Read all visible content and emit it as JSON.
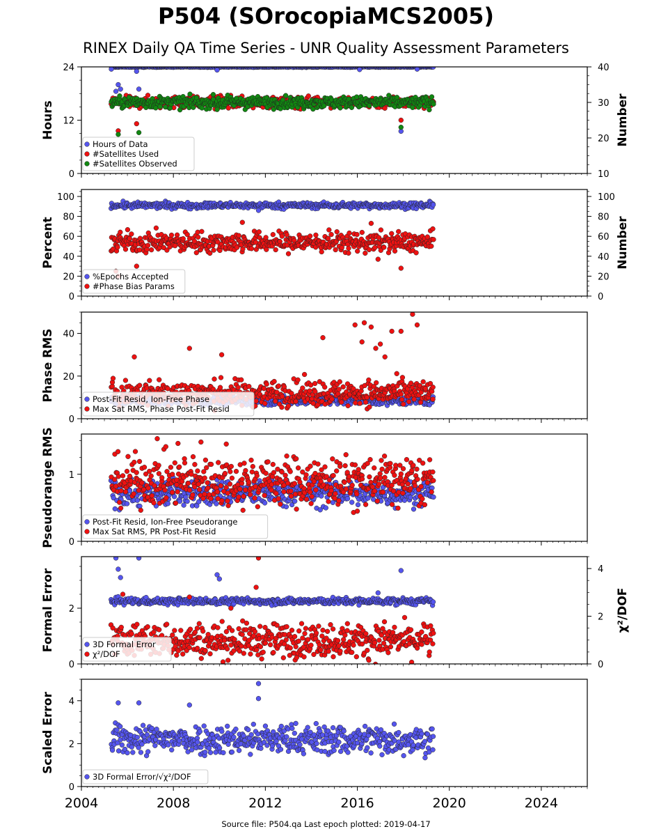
{
  "title": "P504 (SOrocopiaMCS2005)",
  "subtitle": "RINEX Daily QA Time Series - UNR Quality Assessment Parameters",
  "footer": "Source file: P504.qa Last epoch plotted: 2019-04-17",
  "colors": {
    "blue": "#5555ee",
    "red": "#ee1111",
    "green": "#118811",
    "edge": "#222222"
  },
  "chart_data": [
    {
      "type": "scatter",
      "panel": "hours",
      "xlim": [
        2004,
        2026
      ],
      "x_ticks": [
        "2004",
        "2008",
        "2012",
        "2016",
        "2020",
        "2024"
      ],
      "x_span": [
        2005.3,
        2019.3
      ],
      "ylabel": "Hours",
      "ylim": [
        0,
        24
      ],
      "yticks": [
        0,
        12,
        24
      ],
      "ylabel_right": "Number",
      "ylim_right": [
        10,
        40
      ],
      "yticks_right": [
        10,
        20,
        30,
        40
      ],
      "legend_position": "lower-left",
      "series": [
        {
          "name": "Hours of Data",
          "color": "blue",
          "axis": "left",
          "typical": 24.0,
          "spread": 0.05,
          "outliers": [
            [
              2005.3,
              23.5
            ],
            [
              2005.5,
              18.5
            ],
            [
              2005.6,
              20.0
            ],
            [
              2005.7,
              19.0
            ],
            [
              2006.4,
              23.0
            ],
            [
              2006.5,
              19.0
            ],
            [
              2009.9,
              23.3
            ],
            [
              2016.1,
              23.4
            ],
            [
              2017.9,
              9.5
            ],
            [
              2018.6,
              23.5
            ]
          ]
        },
        {
          "name": "#Satellites Used",
          "color": "red",
          "axis": "right",
          "typical": 30.0,
          "spread": 0.8,
          "outliers": [
            [
              2005.6,
              22.0
            ],
            [
              2006.4,
              24.0
            ],
            [
              2008.7,
              31.0
            ],
            [
              2017.9,
              25.0
            ]
          ]
        },
        {
          "name": "#Satellites Observed",
          "color": "green",
          "axis": "right",
          "typical": 30.0,
          "spread": 0.8,
          "outliers": [
            [
              2005.6,
              21.0
            ],
            [
              2006.5,
              21.5
            ],
            [
              2009.9,
              28.0
            ],
            [
              2017.9,
              23.0
            ]
          ]
        }
      ]
    },
    {
      "type": "scatter",
      "panel": "percent",
      "xlim": [
        2004,
        2026
      ],
      "ylabel": "Percent",
      "ylim": [
        0,
        107
      ],
      "yticks": [
        0,
        20,
        40,
        60,
        80,
        100
      ],
      "ylabel_right": "Number",
      "ylim_right": [
        0,
        107
      ],
      "yticks_right": [
        0,
        20,
        40,
        60,
        80,
        100
      ],
      "legend_position": "lower-left",
      "series": [
        {
          "name": "%Epochs Accepted",
          "color": "blue",
          "axis": "left",
          "typical": 91,
          "spread": 1.5,
          "outliers": [
            [
              2011.7,
              86
            ]
          ]
        },
        {
          "name": "#Phase Bias Params",
          "color": "red",
          "axis": "right",
          "typical": 54,
          "spread": 5,
          "outliers": [
            [
              2005.5,
              25
            ],
            [
              2005.6,
              20
            ],
            [
              2006.4,
              30
            ],
            [
              2011.0,
              74
            ],
            [
              2016.6,
              73
            ],
            [
              2016.9,
              37
            ],
            [
              2017.9,
              28
            ]
          ]
        }
      ]
    },
    {
      "type": "scatter",
      "panel": "phase",
      "xlim": [
        2004,
        2026
      ],
      "ylabel": "Phase RMS",
      "ylim": [
        0,
        50
      ],
      "yticks": [
        0,
        20,
        40
      ],
      "legend_position": "lower-left",
      "series": [
        {
          "name": "Post-Fit Resid, Ion-Free Phase",
          "color": "blue",
          "axis": "left",
          "typical": 8.5,
          "spread": 1.0,
          "outliers": []
        },
        {
          "name": "Max Sat RMS, Phase Post-Fit Resid",
          "color": "red",
          "axis": "left",
          "typical": 12,
          "spread": 3,
          "outliers": [
            [
              2006.3,
              29
            ],
            [
              2008.7,
              33
            ],
            [
              2010.1,
              30
            ],
            [
              2014.5,
              38
            ],
            [
              2015.9,
              44
            ],
            [
              2016.2,
              36
            ],
            [
              2016.3,
              45
            ],
            [
              2016.6,
              43
            ],
            [
              2016.8,
              33
            ],
            [
              2017.0,
              35
            ],
            [
              2017.2,
              29
            ],
            [
              2017.5,
              41
            ],
            [
              2017.9,
              41
            ],
            [
              2018.4,
              49
            ],
            [
              2018.6,
              44
            ]
          ]
        }
      ]
    },
    {
      "type": "scatter",
      "panel": "pseudorange",
      "xlim": [
        2004,
        2026
      ],
      "ylabel": "Pseudorange RMS",
      "ylim": [
        0,
        1.6
      ],
      "yticks": [
        0,
        1
      ],
      "legend_position": "lower-left",
      "series": [
        {
          "name": "Post-Fit Resid, Ion-Free Pseudorange",
          "color": "blue",
          "axis": "left",
          "typical": 0.72,
          "spread": 0.1,
          "outliers": []
        },
        {
          "name": "Max Sat RMS, PR Post-Fit Resid",
          "color": "red",
          "axis": "left",
          "typical": 0.9,
          "spread": 0.18,
          "outliers": [
            [
              2007.3,
              1.53
            ],
            [
              2008.2,
              1.46
            ],
            [
              2009.2,
              1.48
            ],
            [
              2010.3,
              1.45
            ],
            [
              2016.0,
              0.45
            ]
          ]
        }
      ]
    },
    {
      "type": "scatter",
      "panel": "formal",
      "xlim": [
        2004,
        2026
      ],
      "ylabel": "Formal Error",
      "ylim": [
        0,
        3.85
      ],
      "yticks": [
        0,
        2
      ],
      "ylabel_right": "χ²/DOF",
      "ylim_right": [
        0,
        4.5
      ],
      "yticks_right": [
        0,
        2,
        4
      ],
      "legend_position": "lower-left",
      "series": [
        {
          "name": "3D Formal Error",
          "color": "blue",
          "axis": "left",
          "typical": 2.25,
          "spread": 0.06,
          "outliers": [
            [
              2005.5,
              3.8
            ],
            [
              2005.6,
              3.4
            ],
            [
              2005.7,
              3.1
            ],
            [
              2006.5,
              3.8
            ],
            [
              2009.9,
              3.2
            ],
            [
              2010.0,
              3.05
            ],
            [
              2016.9,
              2.55
            ],
            [
              2017.9,
              3.35
            ]
          ]
        },
        {
          "name": "χ²/DOF",
          "color": "red",
          "axis": "left",
          "typical": 0.85,
          "spread": 0.3,
          "outliers": [
            [
              2005.8,
              2.5
            ],
            [
              2008.7,
              2.4
            ],
            [
              2011.7,
              3.8
            ],
            [
              2011.6,
              2.75
            ],
            [
              2010.5,
              2.0
            ]
          ]
        }
      ]
    },
    {
      "type": "scatter",
      "panel": "scaled",
      "xlim": [
        2004,
        2026
      ],
      "x_ticks": [
        "2004",
        "2008",
        "2012",
        "2016",
        "2020",
        "2024"
      ],
      "ylabel": "Scaled Error",
      "ylim": [
        0,
        5
      ],
      "yticks": [
        0,
        2,
        4
      ],
      "legend_position": "lower-left",
      "series": [
        {
          "name": "3D Formal Error/√χ²/DOF",
          "color": "blue",
          "axis": "left",
          "typical": 2.2,
          "spread": 0.35,
          "outliers": [
            [
              2011.7,
              4.8
            ],
            [
              2011.7,
              4.1
            ],
            [
              2006.5,
              3.9
            ],
            [
              2008.7,
              3.8
            ],
            [
              2005.6,
              3.9
            ]
          ]
        }
      ]
    }
  ]
}
